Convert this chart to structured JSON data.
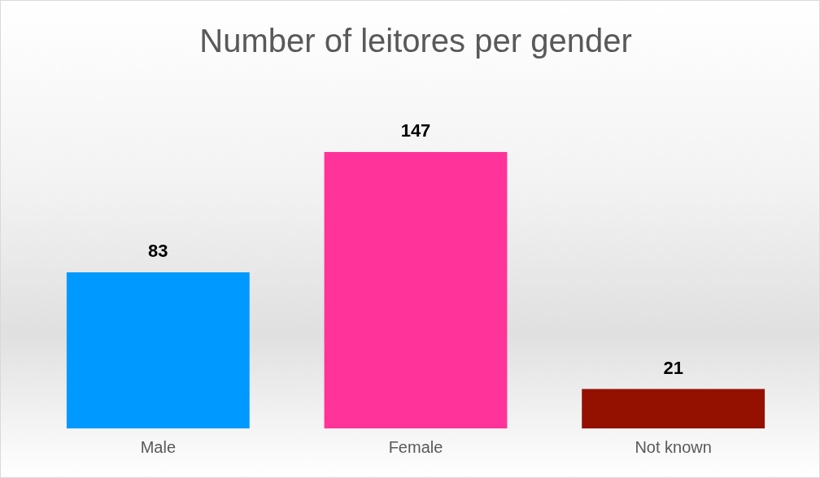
{
  "chart_data": {
    "type": "bar",
    "title": "Number of leitores per gender",
    "categories": [
      "Male",
      "Female",
      "Not known"
    ],
    "values": [
      83,
      147,
      21
    ],
    "colors": [
      "#0099ff",
      "#ff3399",
      "#941100"
    ],
    "data_labels": true,
    "grid": false,
    "legend": false
  }
}
